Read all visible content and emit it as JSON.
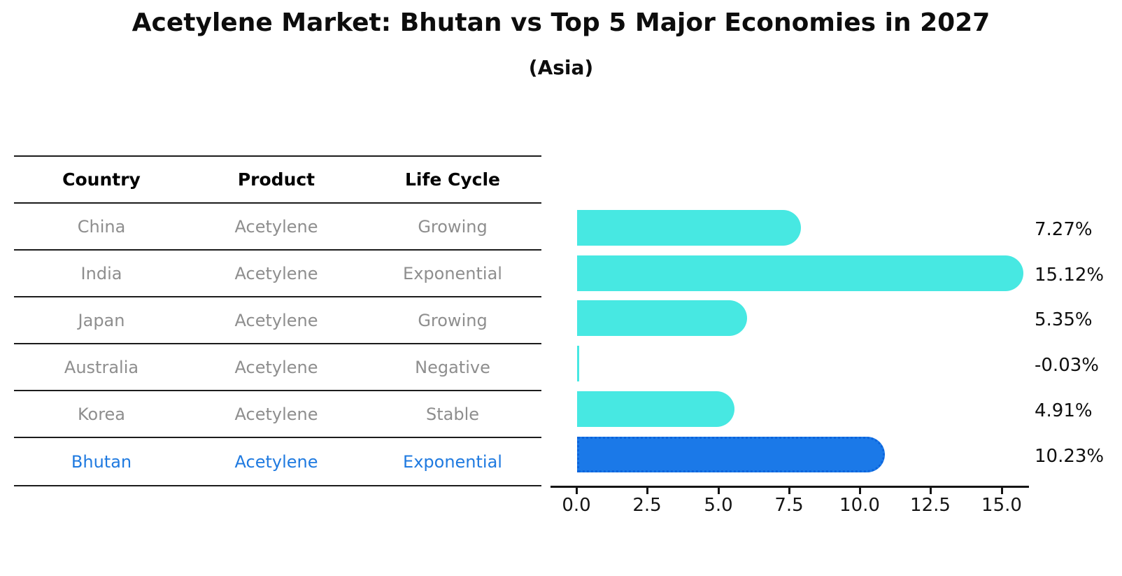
{
  "title": "Acetylene Market: Bhutan vs Top 5 Major Economies in 2027",
  "subtitle": "(Asia)",
  "table": {
    "headers": [
      "Country",
      "Product",
      "Life Cycle"
    ],
    "rows": [
      {
        "country": "China",
        "product": "Acetylene",
        "life_cycle": "Growing",
        "highlight": false
      },
      {
        "country": "India",
        "product": "Acetylene",
        "life_cycle": "Exponential",
        "highlight": false
      },
      {
        "country": "Japan",
        "product": "Acetylene",
        "life_cycle": "Growing",
        "highlight": false
      },
      {
        "country": "Australia",
        "product": "Acetylene",
        "life_cycle": "Negative",
        "highlight": false
      },
      {
        "country": "Korea",
        "product": "Acetylene",
        "life_cycle": "Stable",
        "highlight": false
      },
      {
        "country": "Bhutan",
        "product": "Acetylene",
        "life_cycle": "Exponential",
        "highlight": true
      }
    ]
  },
  "chart_data": {
    "type": "bar",
    "orientation": "horizontal",
    "title": "Acetylene Market: Bhutan vs Top 5 Major Economies in 2027",
    "subtitle": "(Asia)",
    "categories": [
      "China",
      "India",
      "Japan",
      "Australia",
      "Korea",
      "Bhutan"
    ],
    "values": [
      7.27,
      15.12,
      5.35,
      -0.03,
      4.91,
      10.23
    ],
    "value_labels": [
      "7.27%",
      "15.12%",
      "5.35%",
      "-0.03%",
      "4.91%",
      "10.23%"
    ],
    "unit": "%",
    "highlight_index": 5,
    "x_tick_labels": [
      "0.0",
      "2.5",
      "5.0",
      "7.5",
      "10.0",
      "12.5",
      "15.0"
    ],
    "x_tick_values": [
      0,
      2.5,
      5,
      7.5,
      10,
      12.5,
      15
    ],
    "xlim": [
      0,
      16
    ],
    "grid": false,
    "legend": "none"
  },
  "colors": {
    "bar": "#47e8e2",
    "highlight_bar": "#1b79e8",
    "highlight_bar_border": "#0c64dc",
    "table_highlight_text": "#1f7ae0",
    "table_text": "#8e8e8e",
    "axis": "#141414"
  }
}
